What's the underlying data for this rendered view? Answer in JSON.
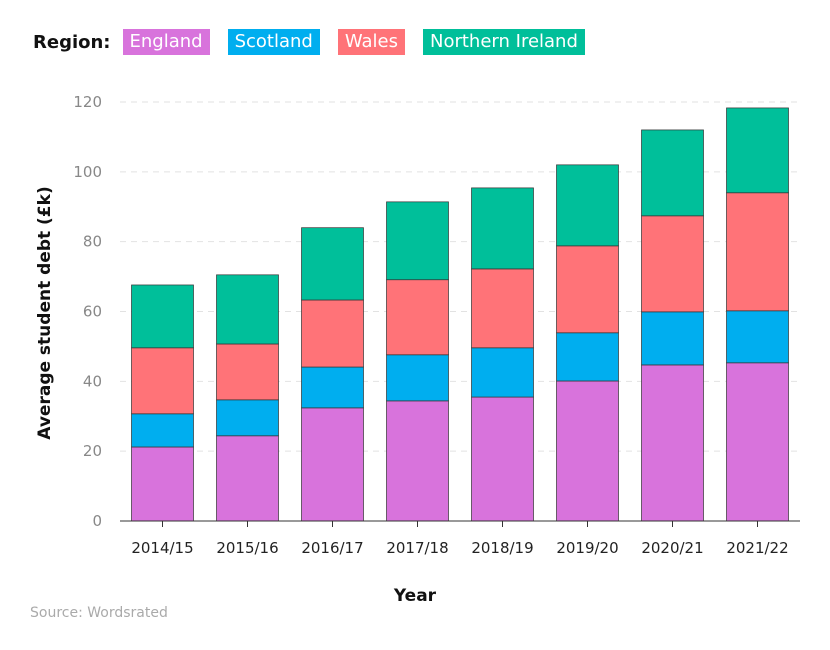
{
  "chart_data": {
    "type": "bar",
    "stacked": true,
    "legend_title": "Region:",
    "xlabel": "Year",
    "ylabel": "Average student debt (£k)",
    "ylim": [
      0,
      120
    ],
    "yticks": [
      0,
      20,
      40,
      60,
      80,
      100,
      120
    ],
    "grid": true,
    "legend_placement": "top-left",
    "categories": [
      "2014/15",
      "2015/16",
      "2016/17",
      "2017/18",
      "2018/19",
      "2019/20",
      "2020/21",
      "2021/22"
    ],
    "series": [
      {
        "name": "England",
        "color": "#d873dc",
        "values": [
          21.2,
          24.4,
          32.4,
          34.4,
          35.5,
          40.1,
          44.7,
          45.3
        ]
      },
      {
        "name": "Scotland",
        "color": "#00aeef",
        "values": [
          9.5,
          10.3,
          11.7,
          13.2,
          14.1,
          13.8,
          15.2,
          14.9
        ]
      },
      {
        "name": "Wales",
        "color": "#ff7378",
        "values": [
          18.9,
          16.0,
          19.2,
          21.5,
          22.6,
          24.9,
          27.5,
          33.8
        ]
      },
      {
        "name": "Northern Ireland",
        "color": "#00bf9a",
        "values": [
          18.0,
          19.8,
          20.7,
          22.3,
          23.2,
          23.2,
          24.6,
          24.3
        ]
      }
    ]
  },
  "source": "Source: Wordsrated"
}
